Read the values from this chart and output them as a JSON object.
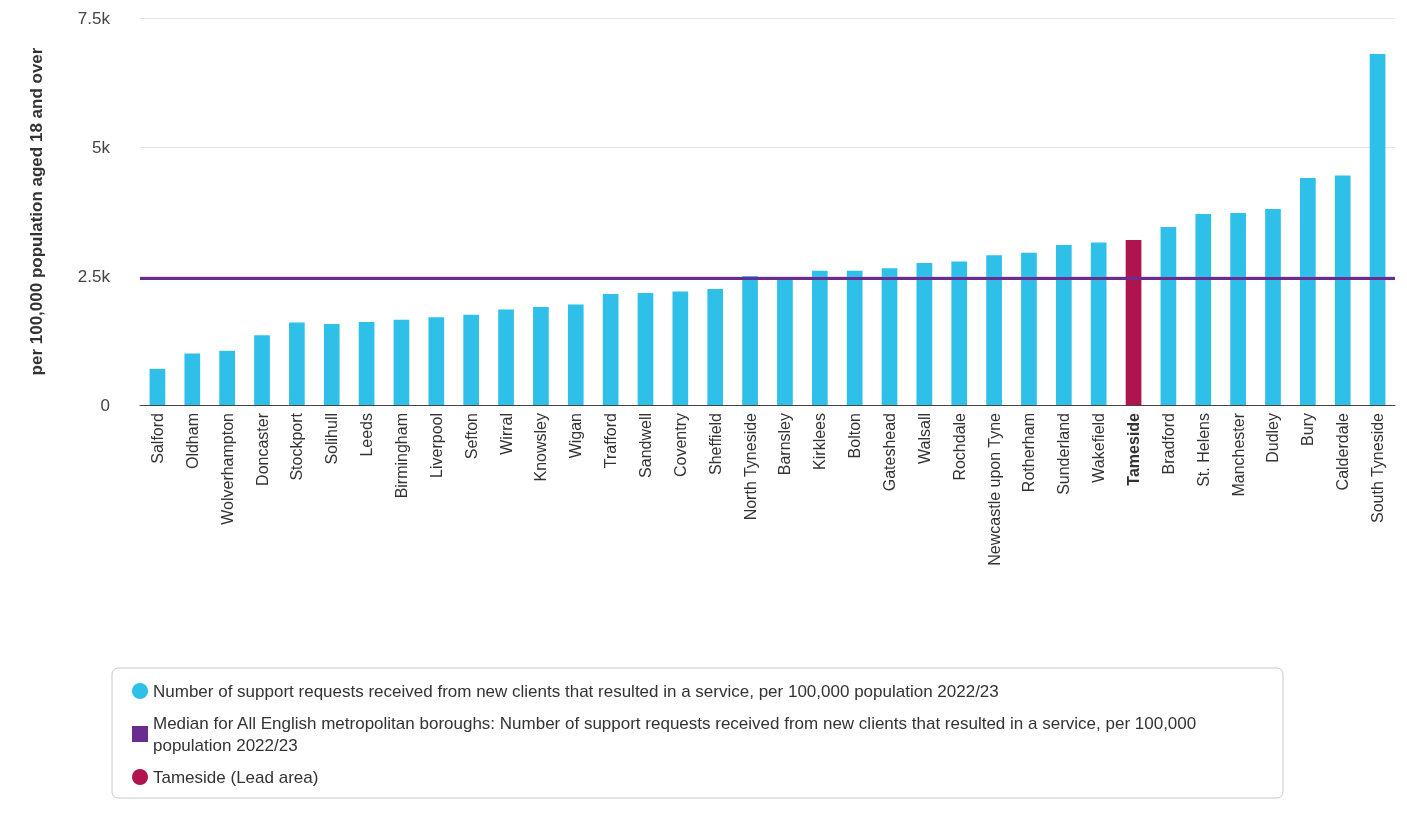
{
  "chart_data": {
    "type": "bar",
    "ylabel": "per 100,000 population aged 18 and over",
    "categories": [
      "Salford",
      "Oldham",
      "Wolverhampton",
      "Doncaster",
      "Stockport",
      "Solihull",
      "Leeds",
      "Birmingham",
      "Liverpool",
      "Sefton",
      "Wirral",
      "Knowsley",
      "Wigan",
      "Trafford",
      "Sandwell",
      "Coventry",
      "Sheffield",
      "North Tyneside",
      "Barnsley",
      "Kirklees",
      "Bolton",
      "Gateshead",
      "Walsall",
      "Rochdale",
      "Newcastle upon Tyne",
      "Rotherham",
      "Sunderland",
      "Wakefield",
      "Tameside",
      "Bradford",
      "St. Helens",
      "Manchester",
      "Dudley",
      "Bury",
      "Calderdale",
      "South Tyneside"
    ],
    "series": [
      {
        "name": "Number of support requests received from new clients that resulted in a service, per 100,000 population 2022/23",
        "color": "#2ec0e8",
        "values": [
          700,
          1000,
          1050,
          1350,
          1600,
          1570,
          1610,
          1650,
          1700,
          1750,
          1850,
          1900,
          1950,
          2150,
          2170,
          2200,
          2250,
          2500,
          2480,
          2600,
          2600,
          2650,
          2750,
          2780,
          2900,
          2950,
          3100,
          3150,
          null,
          3450,
          3700,
          3720,
          3800,
          4400,
          4450,
          6800
        ]
      },
      {
        "name": "Tameside (Lead area)",
        "color": "#b0144e",
        "values": [
          null,
          null,
          null,
          null,
          null,
          null,
          null,
          null,
          null,
          null,
          null,
          null,
          null,
          null,
          null,
          null,
          null,
          null,
          null,
          null,
          null,
          null,
          null,
          null,
          null,
          null,
          null,
          null,
          3200,
          null,
          null,
          null,
          null,
          null,
          null,
          null
        ]
      }
    ],
    "stacked": true,
    "ylim": [
      0,
      7500
    ],
    "yticks": [
      {
        "value": 0,
        "label": "0"
      },
      {
        "value": 2500,
        "label": "2.5k"
      },
      {
        "value": 5000,
        "label": "5k"
      },
      {
        "value": 7500,
        "label": "7.5k"
      }
    ],
    "ref_lines": [
      {
        "axis": "y",
        "value": 2460,
        "label": "Median for All English metropolitan boroughs: Number of support requests received from new clients that resulted in a service, per 100,000 population 2022/23",
        "color": "#6a2c91"
      }
    ],
    "grid": "y",
    "legend": "bottom"
  }
}
